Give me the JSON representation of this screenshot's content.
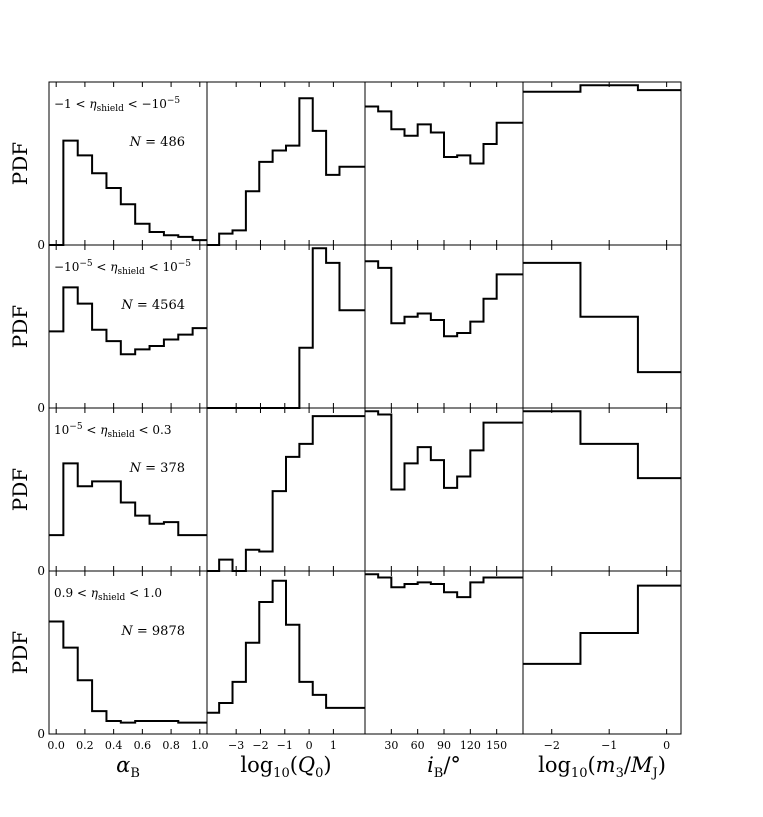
{
  "colors": {
    "stroke": "#000000",
    "background": "#ffffff"
  },
  "chart_data": {
    "type": "histogram-grid",
    "rows": [
      {
        "range_label": "−1 < η_shield < −10⁻⁵",
        "count_label": "N = 486"
      },
      {
        "range_label": "−10⁻⁵ < η_shield < 10⁻⁵",
        "count_label": "N = 4564"
      },
      {
        "range_label": "10⁻⁵ < η_shield < 0.3",
        "count_label": "N = 378"
      },
      {
        "range_label": "0.9 < η_shield < 1.0",
        "count_label": "N = 9878"
      }
    ],
    "ylabel": "PDF",
    "y_zero_label": "0",
    "columns": [
      {
        "xlabel": "α_B",
        "xlim": [
          -0.05,
          1.05
        ],
        "ticks": [
          0.0,
          0.2,
          0.4,
          0.6,
          0.8,
          1.0
        ],
        "tick_labels": [
          "0.0",
          "0.2",
          "0.4",
          "0.6",
          "0.8",
          "1.0"
        ],
        "edges": [
          -0.05,
          0.05,
          0.15,
          0.25,
          0.35,
          0.45,
          0.55,
          0.65,
          0.75,
          0.85,
          0.95,
          1.05
        ],
        "row_values": [
          [
            0.0,
            0.64,
            0.55,
            0.44,
            0.35,
            0.25,
            0.13,
            0.08,
            0.06,
            0.05,
            0.03
          ],
          [
            0.47,
            0.74,
            0.64,
            0.48,
            0.41,
            0.33,
            0.36,
            0.38,
            0.42,
            0.45,
            0.49
          ],
          [
            0.22,
            0.66,
            0.52,
            0.55,
            0.55,
            0.42,
            0.34,
            0.29,
            0.3,
            0.22,
            0.22
          ],
          [
            0.69,
            0.53,
            0.33,
            0.14,
            0.08,
            0.07,
            0.08,
            0.08,
            0.08,
            0.07,
            0.07
          ]
        ]
      },
      {
        "xlabel": "log₁₀(Q₀)",
        "xlim": [
          -4.2,
          2.3
        ],
        "ticks": [
          -3,
          -2,
          -1,
          0,
          1
        ],
        "tick_labels": [
          "−3",
          "−2",
          "−1",
          "0",
          "1"
        ],
        "edges": [
          -4.2,
          -3.7,
          -3.15,
          -2.6,
          -2.05,
          -1.5,
          -0.95,
          -0.4,
          0.15,
          0.7,
          1.25,
          1.8,
          2.3
        ],
        "row_values": [
          [
            0.0,
            0.07,
            0.09,
            0.33,
            0.51,
            0.58,
            0.61,
            0.9,
            0.7,
            0.43,
            0.48,
            0.48
          ],
          [
            0.0,
            0.0,
            0.0,
            0.0,
            0.0,
            0.0,
            0.0,
            0.37,
            0.98,
            0.89,
            0.6,
            0.6
          ],
          [
            0.0,
            0.07,
            0.0,
            0.13,
            0.12,
            0.49,
            0.7,
            0.78,
            0.95,
            0.95,
            0.95,
            0.95
          ],
          [
            0.13,
            0.19,
            0.32,
            0.56,
            0.81,
            0.94,
            0.67,
            0.32,
            0.24,
            0.16,
            0.16,
            0.16
          ]
        ]
      },
      {
        "xlabel": "i_B/°",
        "xlim": [
          0,
          180
        ],
        "ticks": [
          30,
          60,
          90,
          120,
          150
        ],
        "tick_labels": [
          "30",
          "60",
          "90",
          "120",
          "150"
        ],
        "edges": [
          0,
          15,
          30,
          45,
          60,
          75,
          90,
          105,
          120,
          135,
          150,
          165,
          180
        ],
        "row_values": [
          [
            0.85,
            0.82,
            0.71,
            0.67,
            0.74,
            0.69,
            0.54,
            0.55,
            0.5,
            0.62,
            0.75,
            0.75
          ],
          [
            0.9,
            0.86,
            0.52,
            0.56,
            0.58,
            0.54,
            0.44,
            0.46,
            0.53,
            0.67,
            0.82,
            0.82
          ],
          [
            0.98,
            0.96,
            0.5,
            0.66,
            0.76,
            0.68,
            0.51,
            0.58,
            0.74,
            0.91,
            0.91,
            0.91
          ],
          [
            0.98,
            0.96,
            0.9,
            0.92,
            0.93,
            0.92,
            0.87,
            0.84,
            0.93,
            0.96,
            0.96,
            0.96
          ]
        ]
      },
      {
        "xlabel": "log₁₀(m₃/M_J)",
        "xlim": [
          -2.5,
          0.25
        ],
        "ticks": [
          -2,
          -1,
          0
        ],
        "tick_labels": [
          "−2",
          "−1",
          "0"
        ],
        "edges": [
          -2.5,
          -1.5,
          -0.5,
          0.25
        ],
        "row_values": [
          [
            0.94,
            0.98,
            0.95
          ],
          [
            0.89,
            0.56,
            0.22
          ],
          [
            0.98,
            0.78,
            0.57
          ],
          [
            0.43,
            0.62,
            0.91
          ]
        ]
      }
    ]
  }
}
